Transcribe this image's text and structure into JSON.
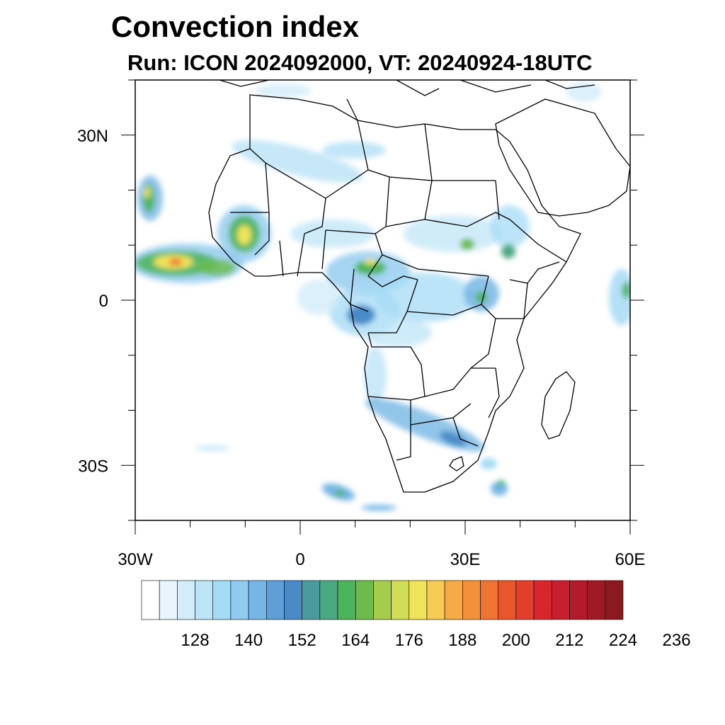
{
  "title": "Convection index",
  "subtitle": "Run: ICON 2024092000,  VT: 20240924-18UTC",
  "map": {
    "region": "Africa",
    "lon_range": [
      -30,
      60
    ],
    "lat_range": [
      -40,
      40
    ],
    "x_ticks": [
      {
        "lon": -30,
        "label": "30W"
      },
      {
        "lon": 0,
        "label": "0"
      },
      {
        "lon": 30,
        "label": "30E"
      },
      {
        "lon": 60,
        "label": "60E"
      }
    ],
    "y_ticks": [
      {
        "lat": 30,
        "label": "30N"
      },
      {
        "lat": 0,
        "label": "0"
      },
      {
        "lat": -30,
        "label": "30S"
      }
    ]
  },
  "colorbar": {
    "colors": [
      "#ffffff",
      "#e9f5fc",
      "#d2ecf9",
      "#bde4f7",
      "#a6dbf5",
      "#8ecbee",
      "#76b6e4",
      "#5e9fd6",
      "#4a8bc7",
      "#4a9a9e",
      "#4aa87e",
      "#4cb45a",
      "#6cbb4c",
      "#a6cc4e",
      "#d2dd56",
      "#efe35a",
      "#f8cb55",
      "#f6ab46",
      "#f29139",
      "#ee7431",
      "#e8572c",
      "#e23e2c",
      "#d9262e",
      "#c71f2e",
      "#b31b2a",
      "#a01a25",
      "#8c1820"
    ],
    "labels": [
      "128",
      "140",
      "152",
      "164",
      "176",
      "188",
      "200",
      "212",
      "224",
      "236"
    ]
  }
}
